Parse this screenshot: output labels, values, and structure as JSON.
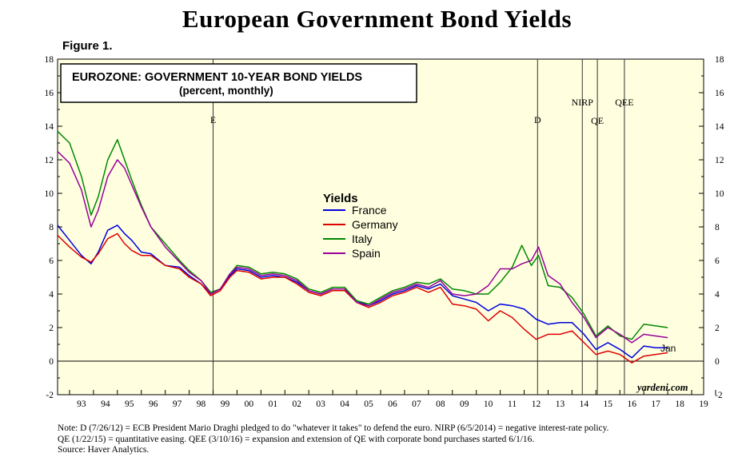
{
  "title": "European Government Bond Yields",
  "figure_label": "Figure 1.",
  "chart_data": {
    "type": "line",
    "box_title": "EUROZONE: GOVERNMENT 10-YEAR BOND YIELDS",
    "box_subtitle": "(percent, monthly)",
    "legend_title": "Yields",
    "ylim": [
      -2,
      18
    ],
    "xlim": [
      1992.5,
      2019.5
    ],
    "y_ticks": [
      "-2",
      "0",
      "2",
      "4",
      "6",
      "8",
      "10",
      "12",
      "14",
      "16",
      "18"
    ],
    "x_tick_labels": [
      "93",
      "94",
      "95",
      "96",
      "97",
      "98",
      "99",
      "00",
      "01",
      "02",
      "03",
      "04",
      "05",
      "06",
      "07",
      "08",
      "09",
      "10",
      "11",
      "12",
      "13",
      "14",
      "15",
      "16",
      "17",
      "18",
      "19"
    ],
    "grid": false,
    "legend_position": "center",
    "end_label": "Jan",
    "watermark": "yardeni.com",
    "events": [
      {
        "label": "E",
        "x": 1999.0
      },
      {
        "label": "D",
        "x": 2012.56
      },
      {
        "label": "NIRP",
        "x": 2014.43
      },
      {
        "label": "QE",
        "x": 2015.06
      },
      {
        "label": "QEE",
        "x": 2016.19
      }
    ],
    "series": [
      {
        "name": "France",
        "color": "#0000dd",
        "x": [
          1992.5,
          1993.0,
          1993.5,
          1993.9,
          1994.2,
          1994.6,
          1995.0,
          1995.3,
          1995.6,
          1996.0,
          1996.4,
          1997.0,
          1997.6,
          1998.0,
          1998.5,
          1998.9,
          1999.3,
          1999.7,
          2000.0,
          2000.5,
          2001.0,
          2001.5,
          2002.0,
          2002.5,
          2003.0,
          2003.5,
          2004.0,
          2004.5,
          2005.0,
          2005.5,
          2006.0,
          2006.5,
          2007.0,
          2007.5,
          2008.0,
          2008.5,
          2009.0,
          2009.5,
          2010.0,
          2010.5,
          2011.0,
          2011.5,
          2012.0,
          2012.5,
          2013.0,
          2013.5,
          2014.0,
          2014.5,
          2015.0,
          2015.5,
          2016.0,
          2016.5,
          2017.0,
          2017.5,
          2018.0
        ],
        "values": [
          8.1,
          7.2,
          6.3,
          5.8,
          6.5,
          7.8,
          8.1,
          7.6,
          7.2,
          6.5,
          6.4,
          5.7,
          5.6,
          5.1,
          4.6,
          4.0,
          4.3,
          5.1,
          5.5,
          5.4,
          5.0,
          5.1,
          5.0,
          4.7,
          4.2,
          4.0,
          4.3,
          4.3,
          3.6,
          3.3,
          3.6,
          4.0,
          4.2,
          4.5,
          4.3,
          4.6,
          3.9,
          3.7,
          3.5,
          3.0,
          3.4,
          3.3,
          3.1,
          2.5,
          2.2,
          2.3,
          2.3,
          1.6,
          0.7,
          1.1,
          0.7,
          0.2,
          0.9,
          0.8,
          0.8
        ]
      },
      {
        "name": "Germany",
        "color": "#dd0000",
        "x": [
          1992.5,
          1993.0,
          1993.5,
          1993.9,
          1994.2,
          1994.6,
          1995.0,
          1995.3,
          1995.6,
          1996.0,
          1996.4,
          1997.0,
          1997.6,
          1998.0,
          1998.5,
          1998.9,
          1999.3,
          1999.7,
          2000.0,
          2000.5,
          2001.0,
          2001.5,
          2002.0,
          2002.5,
          2003.0,
          2003.5,
          2004.0,
          2004.5,
          2005.0,
          2005.5,
          2006.0,
          2006.5,
          2007.0,
          2007.5,
          2008.0,
          2008.5,
          2009.0,
          2009.5,
          2010.0,
          2010.5,
          2011.0,
          2011.5,
          2012.0,
          2012.5,
          2013.0,
          2013.5,
          2014.0,
          2014.5,
          2015.0,
          2015.5,
          2016.0,
          2016.5,
          2017.0,
          2017.5,
          2018.0
        ],
        "values": [
          7.5,
          6.8,
          6.2,
          5.9,
          6.4,
          7.3,
          7.6,
          7.0,
          6.6,
          6.3,
          6.3,
          5.7,
          5.5,
          5.0,
          4.6,
          3.9,
          4.2,
          5.0,
          5.4,
          5.3,
          4.9,
          5.0,
          5.0,
          4.6,
          4.1,
          3.9,
          4.2,
          4.2,
          3.5,
          3.2,
          3.5,
          3.9,
          4.1,
          4.4,
          4.1,
          4.4,
          3.4,
          3.3,
          3.1,
          2.4,
          3.0,
          2.6,
          1.9,
          1.3,
          1.6,
          1.6,
          1.8,
          1.1,
          0.4,
          0.6,
          0.4,
          -0.1,
          0.3,
          0.4,
          0.5
        ]
      },
      {
        "name": "Italy",
        "color": "#008800",
        "x": [
          1992.5,
          1993.0,
          1993.5,
          1993.9,
          1994.2,
          1994.6,
          1995.0,
          1995.3,
          1995.6,
          1996.0,
          1996.4,
          1997.0,
          1997.6,
          1998.0,
          1998.5,
          1998.9,
          1999.3,
          1999.7,
          2000.0,
          2000.5,
          2001.0,
          2001.5,
          2002.0,
          2002.5,
          2003.0,
          2003.5,
          2004.0,
          2004.5,
          2005.0,
          2005.5,
          2006.0,
          2006.5,
          2007.0,
          2007.5,
          2008.0,
          2008.5,
          2009.0,
          2009.5,
          2010.0,
          2010.5,
          2011.0,
          2011.5,
          2011.9,
          2012.3,
          2012.6,
          2013.0,
          2013.5,
          2014.0,
          2014.5,
          2015.0,
          2015.5,
          2016.0,
          2016.5,
          2017.0,
          2017.5,
          2018.0
        ],
        "values": [
          13.7,
          13.0,
          11.0,
          8.7,
          9.8,
          12.0,
          13.2,
          12.0,
          10.8,
          9.3,
          8.0,
          7.0,
          6.0,
          5.4,
          4.8,
          4.1,
          4.3,
          5.2,
          5.7,
          5.6,
          5.2,
          5.3,
          5.2,
          4.9,
          4.3,
          4.1,
          4.4,
          4.4,
          3.6,
          3.4,
          3.8,
          4.2,
          4.4,
          4.7,
          4.6,
          4.9,
          4.3,
          4.2,
          4.0,
          4.0,
          4.7,
          5.6,
          6.9,
          5.7,
          6.3,
          4.5,
          4.4,
          3.8,
          2.8,
          1.5,
          2.1,
          1.5,
          1.3,
          2.2,
          2.1,
          2.0
        ]
      },
      {
        "name": "Spain",
        "color": "#990099",
        "x": [
          1992.5,
          1993.0,
          1993.5,
          1993.9,
          1994.2,
          1994.6,
          1995.0,
          1995.3,
          1995.6,
          1996.0,
          1996.4,
          1997.0,
          1997.6,
          1998.0,
          1998.5,
          1998.9,
          1999.3,
          1999.7,
          2000.0,
          2000.5,
          2001.0,
          2001.5,
          2002.0,
          2002.5,
          2003.0,
          2003.5,
          2004.0,
          2004.5,
          2005.0,
          2005.5,
          2006.0,
          2006.5,
          2007.0,
          2007.5,
          2008.0,
          2008.5,
          2009.0,
          2009.5,
          2010.0,
          2010.5,
          2011.0,
          2011.5,
          2011.9,
          2012.3,
          2012.6,
          2013.0,
          2013.5,
          2014.0,
          2014.5,
          2015.0,
          2015.5,
          2016.0,
          2016.5,
          2017.0,
          2017.5,
          2018.0
        ],
        "values": [
          12.5,
          11.8,
          10.2,
          8.0,
          9.0,
          11.0,
          12.0,
          11.5,
          10.5,
          9.2,
          8.0,
          6.8,
          5.9,
          5.3,
          4.8,
          4.0,
          4.3,
          5.2,
          5.6,
          5.5,
          5.1,
          5.2,
          5.1,
          4.8,
          4.2,
          4.0,
          4.3,
          4.3,
          3.5,
          3.3,
          3.7,
          4.1,
          4.3,
          4.6,
          4.4,
          4.8,
          4.0,
          3.9,
          4.0,
          4.5,
          5.5,
          5.5,
          5.8,
          6.0,
          6.8,
          5.1,
          4.6,
          3.5,
          2.6,
          1.4,
          2.0,
          1.6,
          1.1,
          1.6,
          1.5,
          1.4
        ]
      }
    ]
  },
  "notes": [
    "Note: D (7/26/12) = ECB President Mario Draghi pledged to do \"whatever it takes\" to defend the euro. NIRP (6/5/2014) = negative interest-rate policy.",
    "QE (1/22/15) = quantitative easing. QEE (3/10/16) = expansion and extension of QE with corporate bond purchases started 6/1/16.",
    "Source: Haver Analytics."
  ]
}
